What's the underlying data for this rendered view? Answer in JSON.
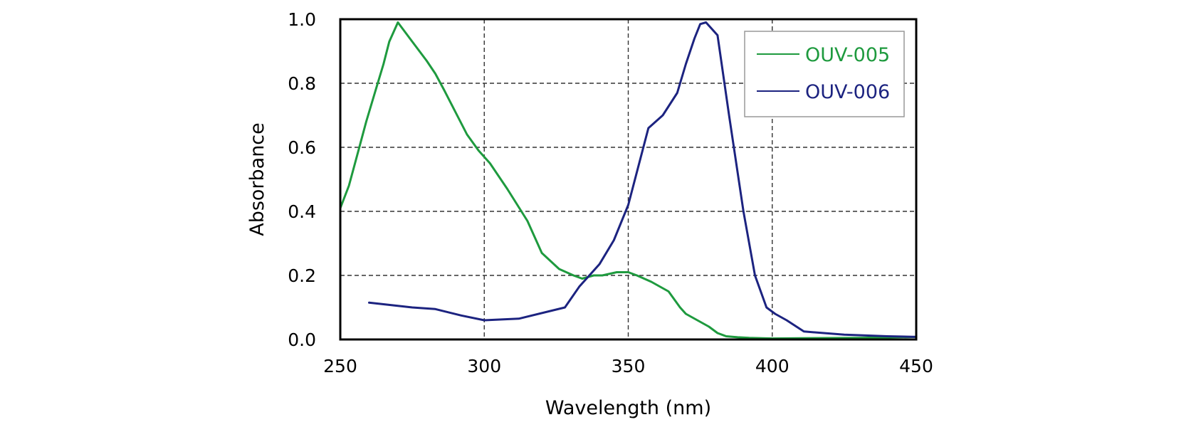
{
  "chart_data": {
    "type": "line",
    "title": "",
    "xlabel": "Wavelength (nm)",
    "ylabel": "Absorbance",
    "xlim": [
      250,
      450
    ],
    "ylim": [
      0.0,
      1.0
    ],
    "xticks": [
      250,
      300,
      350,
      400,
      450
    ],
    "xtick_labels": [
      "250",
      "300",
      "350",
      "400",
      "450"
    ],
    "yticks": [
      0.0,
      0.2,
      0.4,
      0.6,
      0.8,
      1.0
    ],
    "ytick_labels": [
      "0.0",
      "0.2",
      "0.4",
      "0.6",
      "0.8",
      "1.0"
    ],
    "grid": true,
    "legend_position": "top-right",
    "series": [
      {
        "name": "OUV-005",
        "color": "#1e9a3e",
        "x": [
          250,
          253,
          256,
          259,
          262,
          265,
          267,
          270,
          275,
          280,
          283,
          286,
          290,
          294,
          298,
          302,
          308,
          315,
          320,
          326,
          331,
          334,
          338,
          341,
          346,
          350,
          353,
          358,
          364,
          368,
          370,
          374,
          378,
          381,
          384,
          388,
          392,
          400,
          410,
          430,
          450
        ],
        "y": [
          0.41,
          0.48,
          0.58,
          0.68,
          0.77,
          0.86,
          0.93,
          0.99,
          0.93,
          0.87,
          0.83,
          0.78,
          0.71,
          0.64,
          0.59,
          0.55,
          0.47,
          0.37,
          0.27,
          0.22,
          0.2,
          0.19,
          0.2,
          0.2,
          0.21,
          0.21,
          0.2,
          0.18,
          0.15,
          0.1,
          0.08,
          0.06,
          0.04,
          0.02,
          0.01,
          0.007,
          0.005,
          0.003,
          0.004,
          0.005,
          0.008
        ]
      },
      {
        "name": "OUV-006",
        "color": "#1c2380",
        "x": [
          260,
          275,
          283,
          292,
          300,
          312,
          328,
          333,
          340,
          345,
          350,
          357,
          362,
          367,
          370,
          373,
          375,
          377,
          381,
          385,
          390,
          394,
          398,
          401,
          405,
          411,
          425,
          440,
          450
        ],
        "y": [
          0.115,
          0.1,
          0.095,
          0.075,
          0.06,
          0.065,
          0.1,
          0.165,
          0.235,
          0.31,
          0.42,
          0.66,
          0.7,
          0.77,
          0.86,
          0.94,
          0.985,
          0.99,
          0.95,
          0.7,
          0.4,
          0.2,
          0.1,
          0.08,
          0.06,
          0.025,
          0.015,
          0.01,
          0.008
        ]
      }
    ]
  }
}
